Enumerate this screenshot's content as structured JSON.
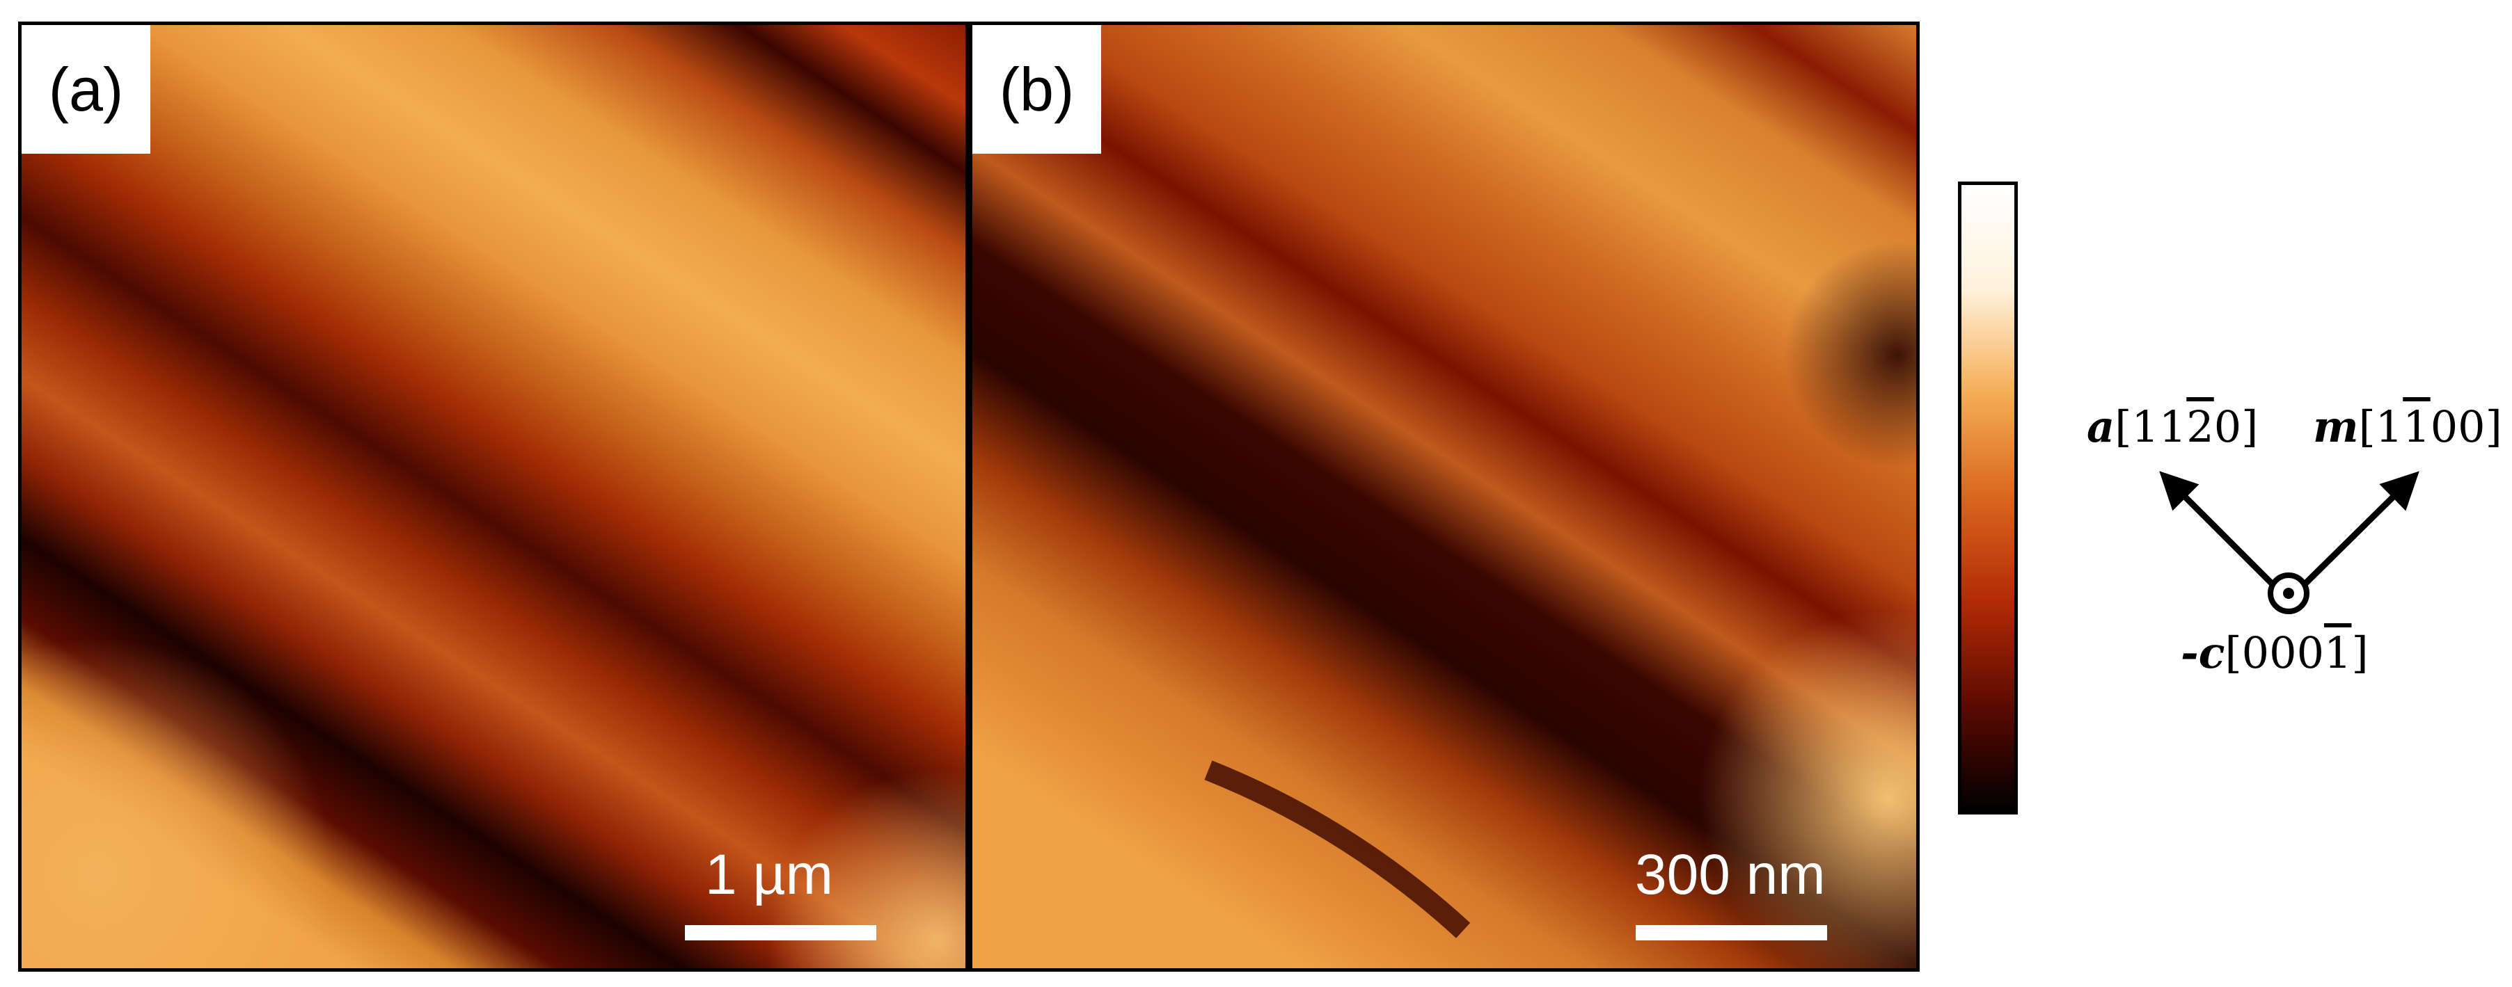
{
  "figure": {
    "panels": [
      {
        "label": "(a)",
        "scale_bar_text": "1 µm"
      },
      {
        "label": "(b)",
        "scale_bar_text": "300 nm"
      }
    ],
    "colorbar": {
      "colors": [
        "#000000",
        "#5a0a00",
        "#b22a05",
        "#d9661e",
        "#f4ad55",
        "#fff2dc",
        "#ffffff"
      ]
    },
    "crystal_axes": {
      "a": {
        "symbol": "a",
        "index_pre": "[11",
        "index_bar": "2",
        "index_post": "0]"
      },
      "m": {
        "symbol": "m",
        "index_pre": "[1",
        "index_bar": "1",
        "index_post": "00]"
      },
      "c": {
        "symbol": "-c",
        "index_pre": "[000",
        "index_bar": "1",
        "index_post": "]"
      }
    }
  }
}
